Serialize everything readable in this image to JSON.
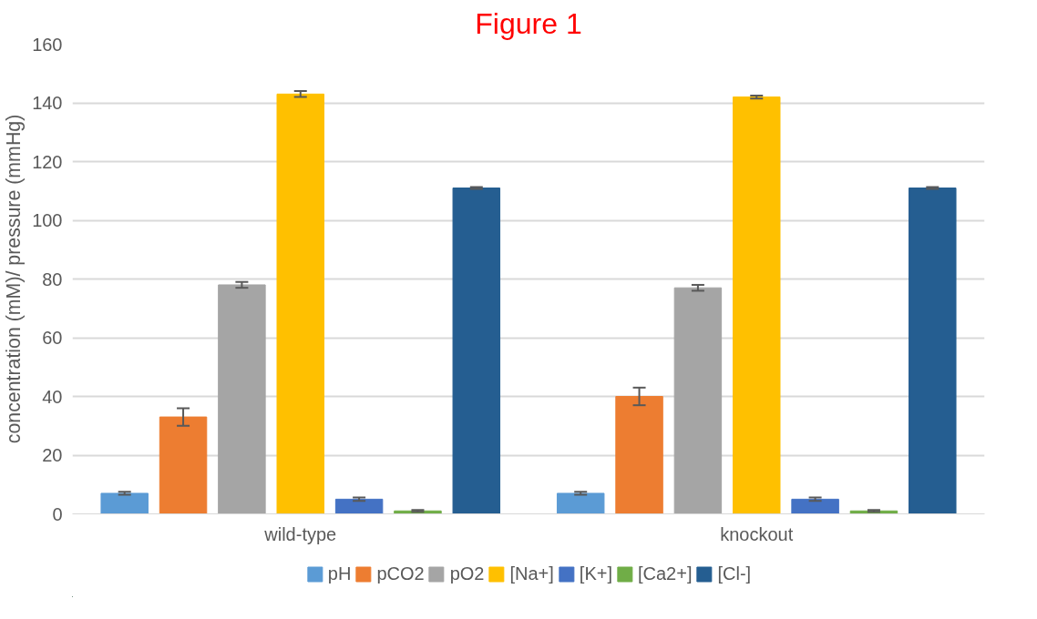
{
  "chart_data": {
    "type": "bar",
    "title": "Figure 1",
    "ylabel": "concentration (mM)/ pressure (mmHg)",
    "categories": [
      "wild-type",
      "knockout"
    ],
    "series": [
      {
        "name": "pH",
        "color": "#5b9bd5",
        "values": [
          7,
          7
        ],
        "errors": [
          0.5,
          0.5
        ]
      },
      {
        "name": "pCO2",
        "color": "#ed7d31",
        "values": [
          33,
          40
        ],
        "errors": [
          3,
          3
        ]
      },
      {
        "name": "pO2",
        "color": "#a5a5a5",
        "values": [
          78,
          77
        ],
        "errors": [
          1,
          1
        ]
      },
      {
        "name": "[Na+]",
        "color": "#ffc000",
        "values": [
          143,
          142
        ],
        "errors": [
          1,
          0.5
        ]
      },
      {
        "name": "[K+]",
        "color": "#4472c4",
        "values": [
          5,
          5
        ],
        "errors": [
          0.6,
          0.6
        ]
      },
      {
        "name": "[Ca2+]",
        "color": "#70ad47",
        "values": [
          1,
          1
        ],
        "errors": [
          0.3,
          0.3
        ]
      },
      {
        "name": "[Cl-]",
        "color": "#255e91",
        "values": [
          111,
          111
        ],
        "errors": [
          0.3,
          0.3
        ]
      }
    ],
    "ylim": [
      0,
      160
    ],
    "yticks": [
      0,
      20,
      40,
      60,
      80,
      100,
      120,
      140,
      160
    ],
    "grid": "y",
    "legend": "bottom"
  }
}
